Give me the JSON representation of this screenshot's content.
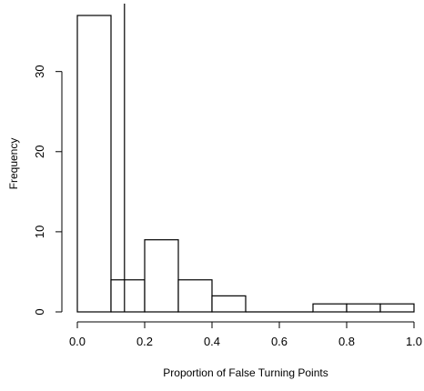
{
  "chart_data": {
    "type": "bar",
    "subtype": "histogram",
    "title": "",
    "xlabel": "Proportion of False Turning Points",
    "ylabel": "Frequency",
    "bins": [
      {
        "from": 0.0,
        "to": 0.1,
        "count": 37
      },
      {
        "from": 0.1,
        "to": 0.2,
        "count": 4
      },
      {
        "from": 0.2,
        "to": 0.3,
        "count": 9
      },
      {
        "from": 0.3,
        "to": 0.4,
        "count": 4
      },
      {
        "from": 0.4,
        "to": 0.5,
        "count": 2
      },
      {
        "from": 0.5,
        "to": 0.6,
        "count": 0
      },
      {
        "from": 0.6,
        "to": 0.7,
        "count": 0
      },
      {
        "from": 0.7,
        "to": 0.8,
        "count": 1
      },
      {
        "from": 0.8,
        "to": 0.9,
        "count": 1
      },
      {
        "from": 0.9,
        "to": 1.0,
        "count": 1
      }
    ],
    "xlim": [
      0.0,
      1.0
    ],
    "ylim": [
      0,
      37
    ],
    "x_ticks": [
      0.0,
      0.2,
      0.4,
      0.6,
      0.8,
      1.0
    ],
    "x_tick_labels": [
      "0.0",
      "0.2",
      "0.4",
      "0.6",
      "0.8",
      "1.0"
    ],
    "y_ticks": [
      0,
      10,
      20,
      30
    ],
    "y_tick_labels": [
      "0",
      "10",
      "20",
      "30"
    ],
    "reference_line_x": 0.14,
    "grid": false,
    "legend": "none"
  }
}
